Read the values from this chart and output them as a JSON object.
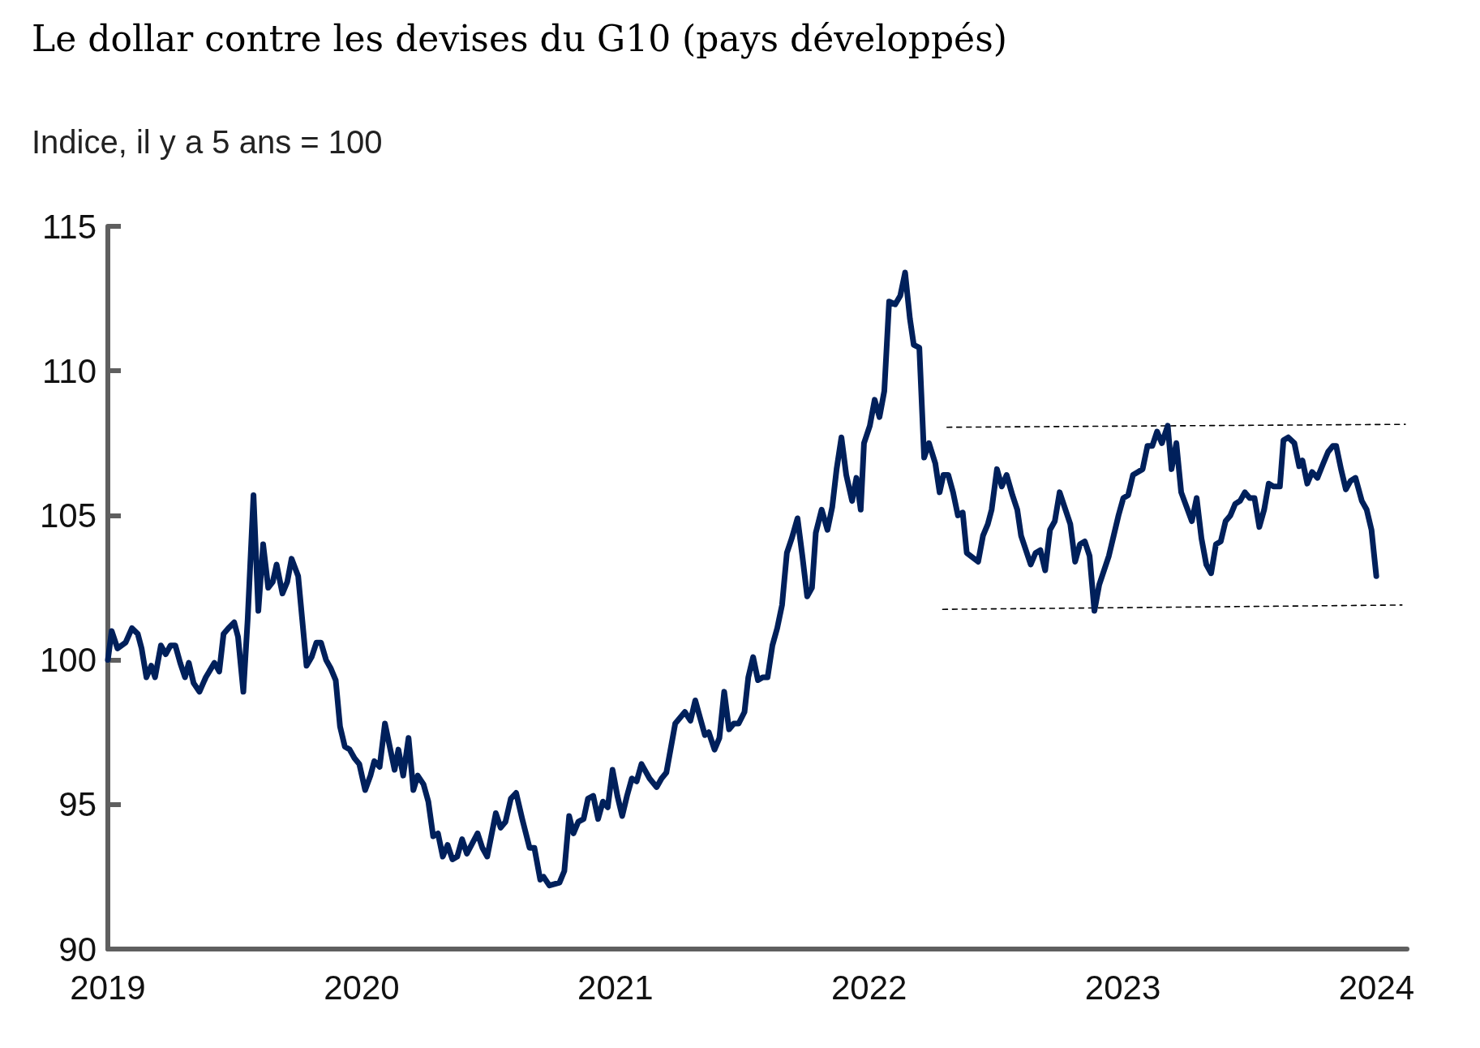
{
  "chart_data": {
    "type": "line",
    "title": "Le dollar contre les devises du G10 (pays développés)",
    "subtitle": "Indice, il y a 5 ans = 100",
    "marker": "none",
    "xlim": [
      2019,
      2024.12
    ],
    "xticks": [
      2019,
      2020,
      2021,
      2022,
      2023,
      2024
    ],
    "ylim": [
      90,
      115
    ],
    "yticks": [
      90,
      95,
      100,
      105,
      110,
      115
    ],
    "series": [
      {
        "color": "#00205b",
        "line_style": "solid",
        "x": [
          2019.0,
          2019.015,
          2019.038,
          2019.07,
          2019.095,
          2019.118,
          2019.133,
          2019.152,
          2019.171,
          2019.186,
          2019.209,
          2019.228,
          2019.247,
          2019.266,
          2019.285,
          2019.304,
          2019.319,
          2019.338,
          2019.361,
          2019.386,
          2019.42,
          2019.439,
          2019.456,
          2019.475,
          2019.498,
          2019.513,
          2019.534,
          2019.551,
          2019.574,
          2019.593,
          2019.612,
          2019.632,
          2019.65,
          2019.665,
          2019.688,
          2019.707,
          2019.724,
          2019.75,
          2019.783,
          2019.803,
          2019.822,
          2019.84,
          2019.86,
          2019.879,
          2019.898,
          2019.915,
          2019.934,
          2019.953,
          2019.972,
          2019.991,
          2020.014,
          2020.035,
          2020.05,
          2020.071,
          2020.092,
          2020.111,
          2020.13,
          2020.145,
          2020.164,
          2020.185,
          2020.204,
          2020.221,
          2020.244,
          2020.263,
          2020.282,
          2020.301,
          2020.32,
          2020.339,
          2020.358,
          2020.377,
          2020.396,
          2020.415,
          2020.457,
          2020.476,
          2020.495,
          2020.529,
          2020.548,
          2020.567,
          2020.588,
          2020.609,
          2020.633,
          2020.662,
          2020.681,
          2020.704,
          2020.717,
          2020.74,
          2020.78,
          2020.799,
          2020.818,
          2020.835,
          2020.854,
          2020.875,
          2020.892,
          2020.913,
          2020.932,
          2020.951,
          2020.97,
          2020.989,
          2021.008,
          2021.027,
          2021.046,
          2021.065,
          2021.084,
          2021.103,
          2021.135,
          2021.163,
          2021.182,
          2021.201,
          2021.236,
          2021.274,
          2021.296,
          2021.315,
          2021.334,
          2021.353,
          2021.368,
          2021.391,
          2021.41,
          2021.429,
          2021.448,
          2021.467,
          2021.486,
          2021.509,
          2021.524,
          2021.543,
          2021.562,
          2021.581,
          2021.6,
          2021.619,
          2021.638,
          2021.657,
          2021.676,
          2021.695,
          2021.718,
          2021.737,
          2021.756,
          2021.775,
          2021.79,
          2021.813,
          2021.836,
          2021.855,
          2021.872,
          2021.891,
          2021.91,
          2021.933,
          2021.95,
          2021.967,
          2021.98,
          2022.003,
          2022.022,
          2022.041,
          2022.06,
          2022.079,
          2022.103,
          2022.123,
          2022.142,
          2022.161,
          2022.176,
          2022.198,
          2022.217,
          2022.236,
          2022.261,
          2022.278,
          2022.293,
          2022.312,
          2022.331,
          2022.35,
          2022.369,
          2022.385,
          2022.43,
          2022.449,
          2022.468,
          2022.483,
          2022.504,
          2022.523,
          2022.542,
          2022.565,
          2022.584,
          2022.599,
          2022.637,
          2022.656,
          2022.675,
          2022.694,
          2022.713,
          2022.732,
          2022.751,
          2022.774,
          2022.793,
          2022.812,
          2022.831,
          2022.85,
          2022.869,
          2022.888,
          2022.907,
          2022.945,
          2022.964,
          2022.983,
          2023.002,
          2023.021,
          2023.04,
          2023.059,
          2023.078,
          2023.097,
          2023.116,
          2023.135,
          2023.154,
          2023.177,
          2023.192,
          2023.211,
          2023.23,
          2023.272,
          2023.291,
          2023.31,
          2023.329,
          2023.348,
          2023.367,
          2023.386,
          2023.405,
          2023.424,
          2023.443,
          2023.462,
          2023.481,
          2023.5,
          2023.519,
          2023.538,
          2023.557,
          2023.575,
          2023.594,
          2023.619,
          2023.633,
          2023.652,
          2023.676,
          2023.695,
          2023.708,
          2023.727,
          2023.746,
          2023.767,
          2023.79,
          2023.809,
          2023.828,
          2023.841,
          2023.86,
          2023.879,
          2023.898,
          2023.917,
          2023.942,
          2023.961,
          2023.98,
          2023.999
        ],
        "values": [
          100.0,
          101.0,
          100.4,
          100.6,
          101.1,
          100.9,
          100.4,
          99.4,
          99.8,
          99.4,
          100.5,
          100.2,
          100.5,
          100.5,
          99.9,
          99.4,
          99.9,
          99.2,
          98.9,
          99.4,
          99.9,
          99.6,
          100.9,
          101.1,
          101.3,
          100.8,
          98.9,
          101.4,
          105.7,
          101.7,
          104.0,
          102.5,
          102.7,
          103.3,
          102.3,
          102.7,
          103.5,
          102.9,
          99.8,
          100.1,
          100.6,
          100.6,
          100.0,
          99.7,
          99.3,
          97.7,
          97.0,
          96.9,
          96.6,
          96.4,
          95.5,
          96.0,
          96.5,
          96.3,
          97.8,
          97.0,
          96.2,
          96.9,
          96.0,
          97.3,
          95.5,
          96.0,
          95.7,
          95.1,
          93.9,
          94.0,
          93.2,
          93.6,
          93.1,
          93.2,
          93.8,
          93.3,
          94.0,
          93.5,
          93.2,
          94.7,
          94.2,
          94.4,
          95.2,
          95.4,
          94.5,
          93.5,
          93.5,
          92.4,
          92.5,
          92.2,
          92.3,
          92.7,
          94.6,
          94.0,
          94.4,
          94.5,
          95.2,
          95.3,
          94.5,
          95.1,
          94.9,
          96.2,
          95.3,
          94.6,
          95.3,
          95.9,
          95.8,
          96.4,
          95.9,
          95.6,
          95.9,
          96.1,
          97.8,
          98.2,
          97.9,
          98.6,
          98.0,
          97.4,
          97.5,
          96.9,
          97.3,
          98.9,
          97.6,
          97.8,
          97.8,
          98.2,
          99.4,
          100.1,
          99.3,
          99.4,
          99.4,
          100.5,
          101.1,
          101.9,
          103.7,
          104.2,
          104.9,
          103.6,
          102.2,
          102.5,
          104.4,
          105.2,
          104.5,
          105.3,
          106.6,
          107.7,
          106.4,
          105.5,
          106.3,
          105.2,
          107.5,
          108.1,
          109.0,
          108.4,
          109.3,
          112.4,
          112.3,
          112.6,
          113.4,
          111.8,
          110.9,
          110.8,
          107.0,
          107.5,
          106.8,
          105.8,
          106.4,
          106.4,
          105.8,
          105.0,
          105.1,
          103.7,
          103.4,
          104.3,
          104.7,
          105.2,
          106.6,
          106.0,
          106.4,
          105.7,
          105.2,
          104.3,
          103.3,
          103.7,
          103.8,
          103.1,
          104.5,
          104.8,
          105.8,
          105.2,
          104.7,
          103.4,
          104.0,
          104.1,
          103.6,
          101.7,
          102.6,
          103.6,
          104.3,
          105.0,
          105.6,
          105.7,
          106.4,
          106.5,
          106.6,
          107.4,
          107.4,
          107.9,
          107.5,
          108.1,
          106.6,
          107.5,
          105.8,
          104.8,
          105.6,
          104.2,
          103.3,
          103.0,
          104.0,
          104.1,
          104.8,
          105.0,
          105.4,
          105.5,
          105.8,
          105.6,
          105.6,
          104.6,
          105.2,
          106.1,
          106.0,
          106.0,
          107.6,
          107.7,
          107.5,
          106.7,
          106.9,
          106.1,
          106.5,
          106.3,
          106.8,
          107.2,
          107.4,
          107.4,
          106.6,
          105.9,
          106.2,
          106.3,
          105.5,
          105.2,
          104.5,
          102.9
        ]
      },
      {
        "type": "line",
        "color": "#000000",
        "line_style": "dashed",
        "x": [
          2022.307,
          2024.113
        ],
        "values": [
          108.05,
          108.15
        ]
      },
      {
        "type": "line",
        "color": "#000000",
        "line_style": "dashed",
        "x": [
          2022.29,
          2024.1
        ],
        "values": [
          101.75,
          101.9
        ]
      }
    ]
  }
}
